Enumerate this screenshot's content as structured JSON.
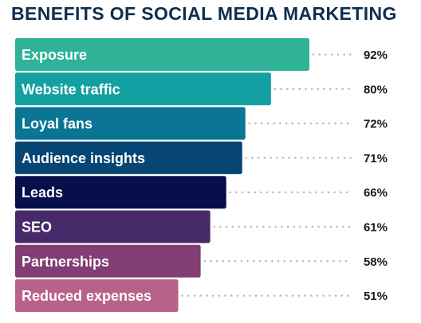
{
  "chart_data": {
    "type": "bar",
    "orientation": "horizontal",
    "title": "BENEFITS OF SOCIAL MEDIA MARKETING",
    "categories": [
      "Exposure",
      "Website traffic",
      "Loyal fans",
      "Audience insights",
      "Leads",
      "SEO",
      "Partnerships",
      "Reduced expenses"
    ],
    "values": [
      92,
      80,
      72,
      71,
      66,
      61,
      58,
      51
    ],
    "value_labels": [
      "92%",
      "80%",
      "72%",
      "71%",
      "66%",
      "61%",
      "58%",
      "51%"
    ],
    "unit": "%",
    "colors": [
      "#2eb398",
      "#13a0a2",
      "#0b7596",
      "#074674",
      "#060f4a",
      "#472a6a",
      "#813d74",
      "#b8628a"
    ],
    "grid": false,
    "legend": "none"
  }
}
